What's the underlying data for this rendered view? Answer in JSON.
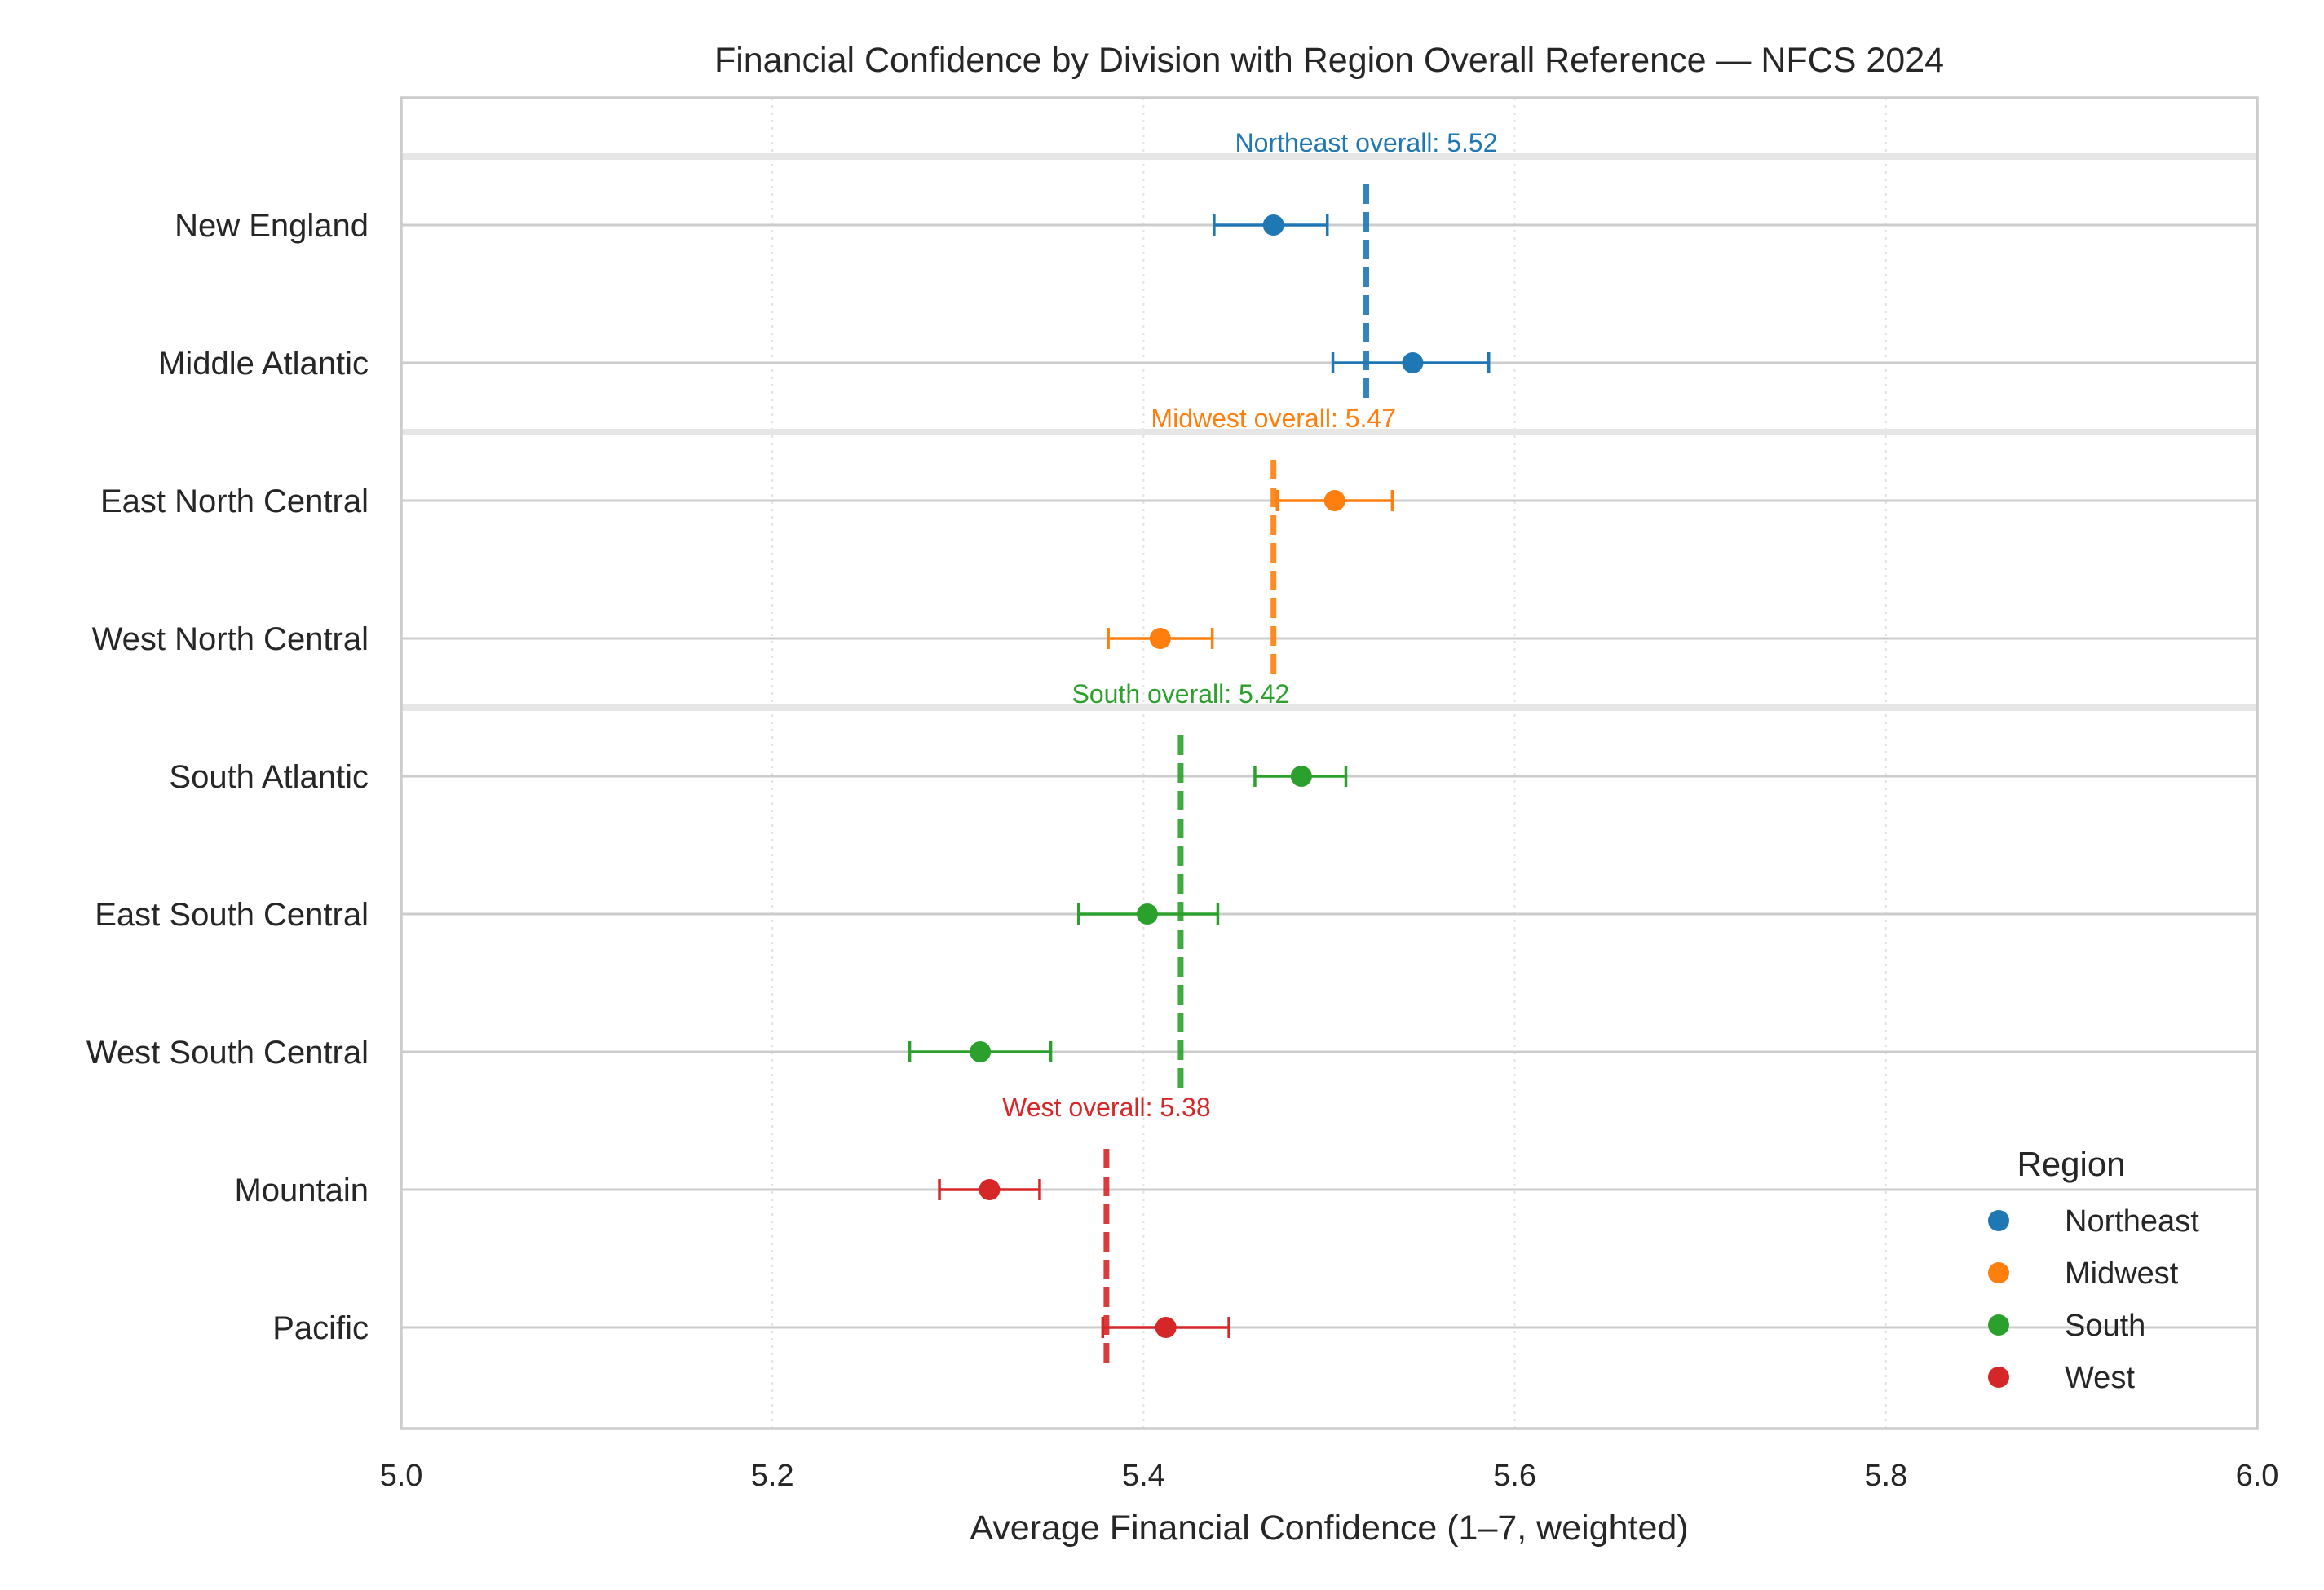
{
  "chart_data": {
    "type": "scatter",
    "title": "Financial Confidence by Division with Region Overall Reference — NFCS 2024",
    "xlabel": "Average Financial Confidence (1–7, weighted)",
    "xlim": [
      5.0,
      6.0
    ],
    "xticks": [
      "5.0",
      "5.2",
      "5.4",
      "5.6",
      "5.8",
      "6.0"
    ],
    "grid": true,
    "legend": {
      "title": "Region",
      "placement": "bottom-right"
    },
    "regions": [
      {
        "name": "Northeast",
        "color": "#1f77b4",
        "overall": 5.52,
        "overall_label": "Northeast overall: 5.52"
      },
      {
        "name": "Midwest",
        "color": "#ff7f0e",
        "overall": 5.47,
        "overall_label": "Midwest overall: 5.47"
      },
      {
        "name": "South",
        "color": "#2ca02c",
        "overall": 5.42,
        "overall_label": "South overall: 5.42"
      },
      {
        "name": "West",
        "color": "#d62728",
        "overall": 5.38,
        "overall_label": "West overall: 5.38"
      }
    ],
    "divisions": [
      {
        "name": "New England",
        "region": "Northeast",
        "value": 5.47,
        "ci_low": 5.438,
        "ci_high": 5.499
      },
      {
        "name": "Middle Atlantic",
        "region": "Northeast",
        "value": 5.545,
        "ci_low": 5.502,
        "ci_high": 5.586
      },
      {
        "name": "East North Central",
        "region": "Midwest",
        "value": 5.503,
        "ci_low": 5.472,
        "ci_high": 5.534
      },
      {
        "name": "West North Central",
        "region": "Midwest",
        "value": 5.409,
        "ci_low": 5.381,
        "ci_high": 5.437
      },
      {
        "name": "South Atlantic",
        "region": "South",
        "value": 5.485,
        "ci_low": 5.46,
        "ci_high": 5.509
      },
      {
        "name": "East South Central",
        "region": "South",
        "value": 5.402,
        "ci_low": 5.365,
        "ci_high": 5.44
      },
      {
        "name": "West South Central",
        "region": "South",
        "value": 5.312,
        "ci_low": 5.274,
        "ci_high": 5.35
      },
      {
        "name": "Mountain",
        "region": "West",
        "value": 5.317,
        "ci_low": 5.29,
        "ci_high": 5.344
      },
      {
        "name": "Pacific",
        "region": "West",
        "value": 5.412,
        "ci_low": 5.378,
        "ci_high": 5.446
      }
    ]
  }
}
